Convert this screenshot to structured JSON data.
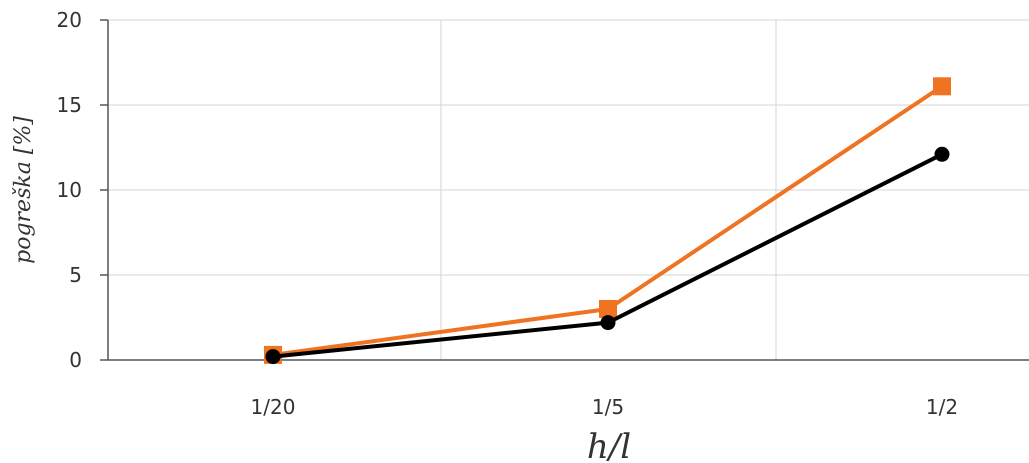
{
  "chart_data": {
    "type": "line",
    "categories": [
      "1/20",
      "1/5",
      "1/2"
    ],
    "xlabel": "h/l",
    "ylabel": "pogreška [%]",
    "ylim": [
      0,
      20
    ],
    "yticks": [
      "0",
      "5",
      "10",
      "15",
      "20"
    ],
    "grid": true,
    "series": [
      {
        "values": [
          0.3,
          3.0,
          16.1
        ],
        "color": "#f07322",
        "marker": "square"
      },
      {
        "values": [
          0.2,
          2.2,
          12.1
        ],
        "color": "#000000",
        "marker": "circle"
      }
    ]
  }
}
